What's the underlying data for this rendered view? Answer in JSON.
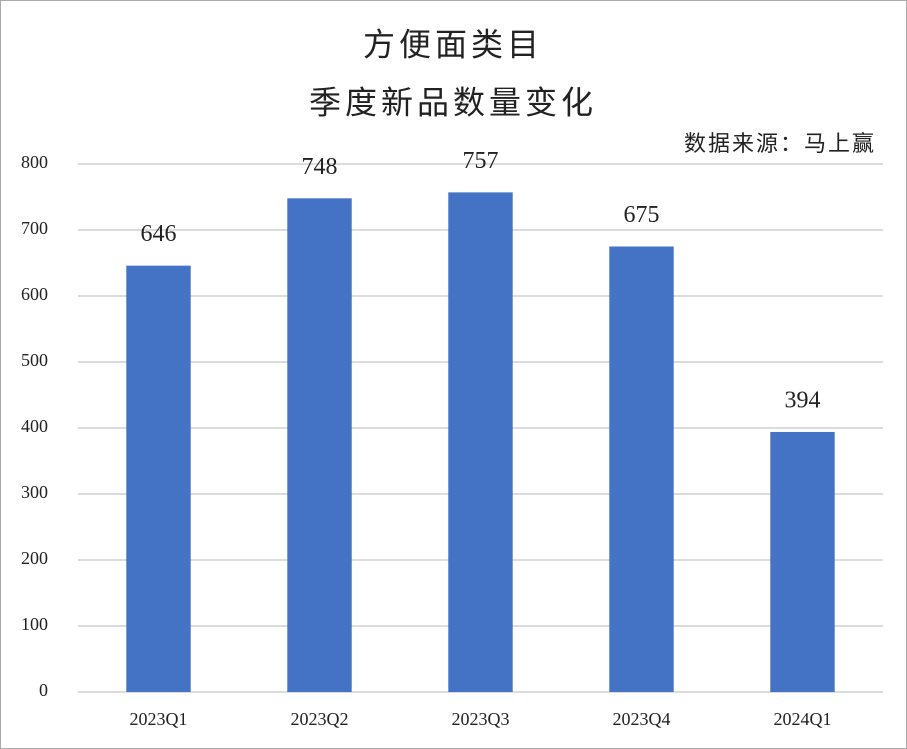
{
  "chart_data": {
    "type": "bar",
    "title": "方便面类目",
    "subtitle": "季度新品数量变化",
    "annotation": "数据来源：马上赢",
    "categories": [
      "2023Q1",
      "2023Q2",
      "2023Q3",
      "2023Q4",
      "2024Q1"
    ],
    "values": [
      646,
      748,
      757,
      675,
      394
    ],
    "color": "#4472c4",
    "ylim": [
      0,
      800
    ],
    "yticks": [
      0,
      100,
      200,
      300,
      400,
      500,
      600,
      700,
      800
    ],
    "grid": true,
    "data_labels": true
  }
}
